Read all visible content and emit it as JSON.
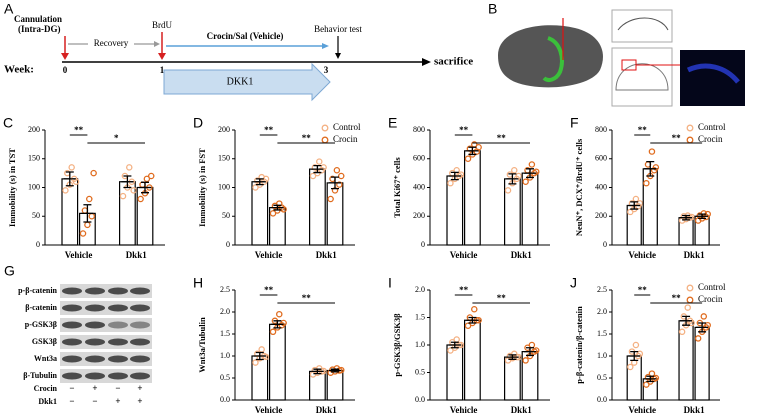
{
  "panel_a": {
    "label": "A",
    "week": "Week:",
    "weeks": [
      "0",
      "1",
      "3"
    ],
    "cannulation": [
      "Cannulation",
      "(Intra-DG)"
    ],
    "recovery": "Recovery",
    "brdu": "BrdU",
    "treatment": "Crocin/Sal (Vehicle)",
    "behavior": "Behavior test",
    "end": "sacrifice",
    "dkk1": "DKK1"
  },
  "panel_b": {
    "label": "B"
  },
  "panel_g": {
    "label": "G",
    "rows": [
      "p-β-catenin",
      "β-catenin",
      "p-GSK3β",
      "GSK3β",
      "Wnt3a",
      "β-Tubulin"
    ],
    "conditions": [
      {
        "name": "Crocin",
        "signs": [
          "−",
          "+",
          "−",
          "+"
        ]
      },
      {
        "name": "Dkk1",
        "signs": [
          "−",
          "−",
          "+",
          "+"
        ]
      }
    ]
  },
  "chart_data": [
    {
      "type": "bar",
      "label": "C",
      "ylabel": "Immobility (s) in TST",
      "categories": [
        "Vehicle",
        "Dkk1"
      ],
      "ylim": [
        0,
        200
      ],
      "yticks": [
        0,
        50,
        100,
        150,
        200
      ],
      "annotations": [
        "**",
        "*"
      ],
      "series": [
        {
          "color": "#f4b183",
          "values": [
            115,
            110
          ],
          "errors": [
            12,
            10
          ],
          "points": [
            [
              95,
              105,
              115,
              125,
              135,
              110
            ],
            [
              85,
              100,
              110,
              120,
              135,
              95
            ]
          ]
        },
        {
          "color": "#e06c1f",
          "values": [
            55,
            100
          ],
          "errors": [
            15,
            9
          ],
          "points": [
            [
              20,
              35,
              50,
              60,
              80,
              125
            ],
            [
              80,
              90,
              100,
              105,
              115,
              120
            ]
          ]
        }
      ]
    },
    {
      "type": "bar",
      "label": "D",
      "ylabel": "Immobility (s) in FST",
      "categories": [
        "Vehicle",
        "Dkk1"
      ],
      "ylim": [
        0,
        200
      ],
      "yticks": [
        0,
        50,
        100,
        150,
        200
      ],
      "annotations": [
        "**",
        "**"
      ],
      "legend": "upper right",
      "series": [
        {
          "name": "Control",
          "color": "#f4b183",
          "values": [
            110,
            132
          ],
          "errors": [
            5,
            6
          ],
          "points": [
            [
              100,
              105,
              110,
              112,
              118,
              115
            ],
            [
              120,
              125,
              130,
              135,
              145,
              135
            ]
          ]
        },
        {
          "name": "Crocin",
          "color": "#e06c1f",
          "values": [
            65,
            108
          ],
          "errors": [
            4,
            10
          ],
          "points": [
            [
              55,
              60,
              65,
              68,
              72,
              62
            ],
            [
              80,
              95,
              105,
              115,
              130,
              120
            ]
          ]
        }
      ]
    },
    {
      "type": "bar",
      "label": "E",
      "ylabel": "Total Ki67⁺ cells",
      "categories": [
        "Vehicle",
        "Dkk1"
      ],
      "ylim": [
        0,
        800
      ],
      "yticks": [
        0,
        200,
        400,
        600,
        800
      ],
      "annotations": [
        "**",
        "**"
      ],
      "series": [
        {
          "color": "#f4b183",
          "values": [
            480,
            460
          ],
          "errors": [
            25,
            35
          ],
          "points": [
            [
              430,
              460,
              480,
              500,
              520,
              490
            ],
            [
              380,
              430,
              460,
              490,
              520,
              480
            ]
          ]
        },
        {
          "color": "#e06c1f",
          "values": [
            655,
            500
          ],
          "errors": [
            25,
            30
          ],
          "points": [
            [
              600,
              630,
              650,
              670,
              700,
              680
            ],
            [
              440,
              470,
              500,
              520,
              560,
              510
            ]
          ]
        }
      ]
    },
    {
      "type": "bar",
      "label": "F",
      "ylabel": "NeuN⁺, DCX⁺/BrdU⁺ cells",
      "categories": [
        "Vehicle",
        "Dkk1"
      ],
      "ylim": [
        0,
        800
      ],
      "yticks": [
        0,
        200,
        400,
        600,
        800
      ],
      "annotations": [
        "**",
        "**"
      ],
      "legend": "upper right",
      "series": [
        {
          "name": "Control",
          "color": "#f4b183",
          "values": [
            275,
            190
          ],
          "errors": [
            25,
            15
          ],
          "points": [
            [
              230,
              250,
              270,
              290,
              320,
              290
            ],
            [
              170,
              180,
              190,
              200,
              205,
              195
            ]
          ]
        },
        {
          "name": "Crocin",
          "color": "#e06c1f",
          "values": [
            530,
            200
          ],
          "errors": [
            50,
            15
          ],
          "points": [
            [
              430,
              480,
              520,
              560,
              650,
              540
            ],
            [
              170,
              185,
              195,
              205,
              220,
              215
            ]
          ]
        }
      ]
    },
    {
      "type": "bar",
      "label": "H",
      "ylabel": "Wnt3a/Tubulin",
      "categories": [
        "Vehicle",
        "Dkk1"
      ],
      "ylim": [
        0,
        2.5
      ],
      "yticks": [
        {
          "value": 0,
          "label": "0.0"
        },
        {
          "value": 0.5,
          "label": "0.5"
        },
        {
          "value": 1,
          "label": "1.0"
        },
        {
          "value": 1.5,
          "label": "1.5"
        },
        {
          "value": 2,
          "label": "2.0"
        },
        {
          "value": 2.5,
          "label": "2.5"
        }
      ],
      "annotations": [
        "**",
        "**"
      ],
      "series": [
        {
          "color": "#f4b183",
          "values": [
            1.0,
            0.65
          ],
          "errors": [
            0.08,
            0.05
          ],
          "points": [
            [
              0.85,
              0.95,
              1.0,
              1.05,
              1.15,
              0.98
            ],
            [
              0.58,
              0.62,
              0.65,
              0.68,
              0.72,
              0.66
            ]
          ]
        },
        {
          "color": "#e06c1f",
          "values": [
            1.72,
            0.67
          ],
          "errors": [
            0.08,
            0.03
          ],
          "points": [
            [
              1.55,
              1.65,
              1.7,
              1.8,
              1.95,
              1.75
            ],
            [
              0.62,
              0.65,
              0.67,
              0.69,
              0.72,
              0.68
            ]
          ]
        }
      ]
    },
    {
      "type": "bar",
      "label": "I",
      "ylabel": "p-GSK3β/GSK3β",
      "categories": [
        "Vehicle",
        "Dkk1"
      ],
      "ylim": [
        0,
        2
      ],
      "yticks": [
        {
          "value": 0,
          "label": "0.0"
        },
        {
          "value": 0.5,
          "label": "0.5"
        },
        {
          "value": 1,
          "label": "1.0"
        },
        {
          "value": 1.5,
          "label": "1.5"
        },
        {
          "value": 2,
          "label": "2.0"
        }
      ],
      "annotations": [
        "**",
        "**"
      ],
      "series": [
        {
          "color": "#f4b183",
          "values": [
            1.0,
            0.78
          ],
          "errors": [
            0.05,
            0.04
          ],
          "points": [
            [
              0.9,
              0.95,
              1.0,
              1.05,
              1.1,
              1.0
            ],
            [
              0.72,
              0.76,
              0.78,
              0.8,
              0.84,
              0.78
            ]
          ]
        },
        {
          "color": "#e06c1f",
          "values": [
            1.45,
            0.88
          ],
          "errors": [
            0.05,
            0.07
          ],
          "points": [
            [
              1.35,
              1.4,
              1.45,
              1.5,
              1.65,
              1.45
            ],
            [
              0.72,
              0.8,
              0.88,
              0.95,
              1.0,
              0.9
            ]
          ]
        }
      ]
    },
    {
      "type": "bar",
      "label": "J",
      "ylabel": "p-β-catenin/β-catenin",
      "categories": [
        "Vehicle",
        "Dkk1"
      ],
      "ylim": [
        0,
        2.5
      ],
      "yticks": [
        {
          "value": 0,
          "label": "0.0"
        },
        {
          "value": 0.5,
          "label": "0.5"
        },
        {
          "value": 1,
          "label": "1.0"
        },
        {
          "value": 1.5,
          "label": "1.5"
        },
        {
          "value": 2,
          "label": "2.0"
        },
        {
          "value": 2.5,
          "label": "2.5"
        }
      ],
      "annotations": [
        "**",
        "**"
      ],
      "legend": "upper right",
      "series": [
        {
          "name": "Control",
          "color": "#f4b183",
          "values": [
            1.0,
            1.8
          ],
          "errors": [
            0.1,
            0.1
          ],
          "points": [
            [
              0.75,
              0.85,
              1.0,
              1.1,
              1.25,
              1.05
            ],
            [
              1.55,
              1.7,
              1.8,
              1.9,
              2.1,
              1.75
            ]
          ]
        },
        {
          "name": "Crocin",
          "color": "#e06c1f",
          "values": [
            0.48,
            1.65
          ],
          "errors": [
            0.06,
            0.1
          ],
          "points": [
            [
              0.35,
              0.42,
              0.48,
              0.52,
              0.6,
              0.5
            ],
            [
              1.4,
              1.55,
              1.65,
              1.75,
              1.9,
              1.7
            ]
          ]
        }
      ]
    }
  ]
}
